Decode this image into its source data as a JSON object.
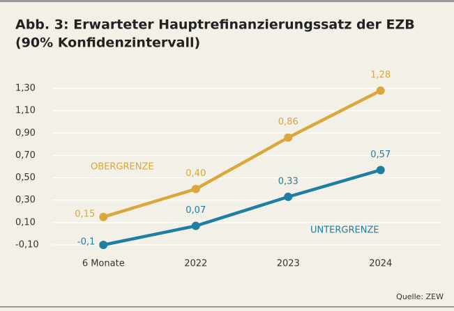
{
  "chart_data": {
    "type": "line",
    "title": "Abb. 3: Erwarteter Hauptrefinanzierungssatz der EZB",
    "subtitle": "(90% Konfidenzintervall)",
    "categories": [
      "6 Monate",
      "2022",
      "2023",
      "2024"
    ],
    "series": [
      {
        "name": "OBERGRENZE",
        "color": "#d9a73c",
        "values": [
          0.15,
          0.4,
          0.86,
          1.28
        ],
        "value_labels": [
          "0,15",
          "0,40",
          "0,86",
          "1,28"
        ]
      },
      {
        "name": "UNTERGRENZE",
        "color": "#1f7ea1",
        "values": [
          -0.1,
          0.07,
          0.33,
          0.57
        ],
        "value_labels": [
          "-0,1",
          "0,07",
          "0,33",
          "0,57"
        ]
      }
    ],
    "ylim": [
      -0.1,
      1.3
    ],
    "yticks": [
      {
        "value": -0.1,
        "label": "-0,10"
      },
      {
        "value": 0.1,
        "label": "0,10"
      },
      {
        "value": 0.3,
        "label": "0,30"
      },
      {
        "value": 0.5,
        "label": "0,50"
      },
      {
        "value": 0.7,
        "label": "0,70"
      },
      {
        "value": 0.9,
        "label": "0,90"
      },
      {
        "value": 1.1,
        "label": "1,10"
      },
      {
        "value": 1.3,
        "label": "1,30"
      }
    ],
    "grid": true,
    "source": "Quelle: ZEW"
  }
}
